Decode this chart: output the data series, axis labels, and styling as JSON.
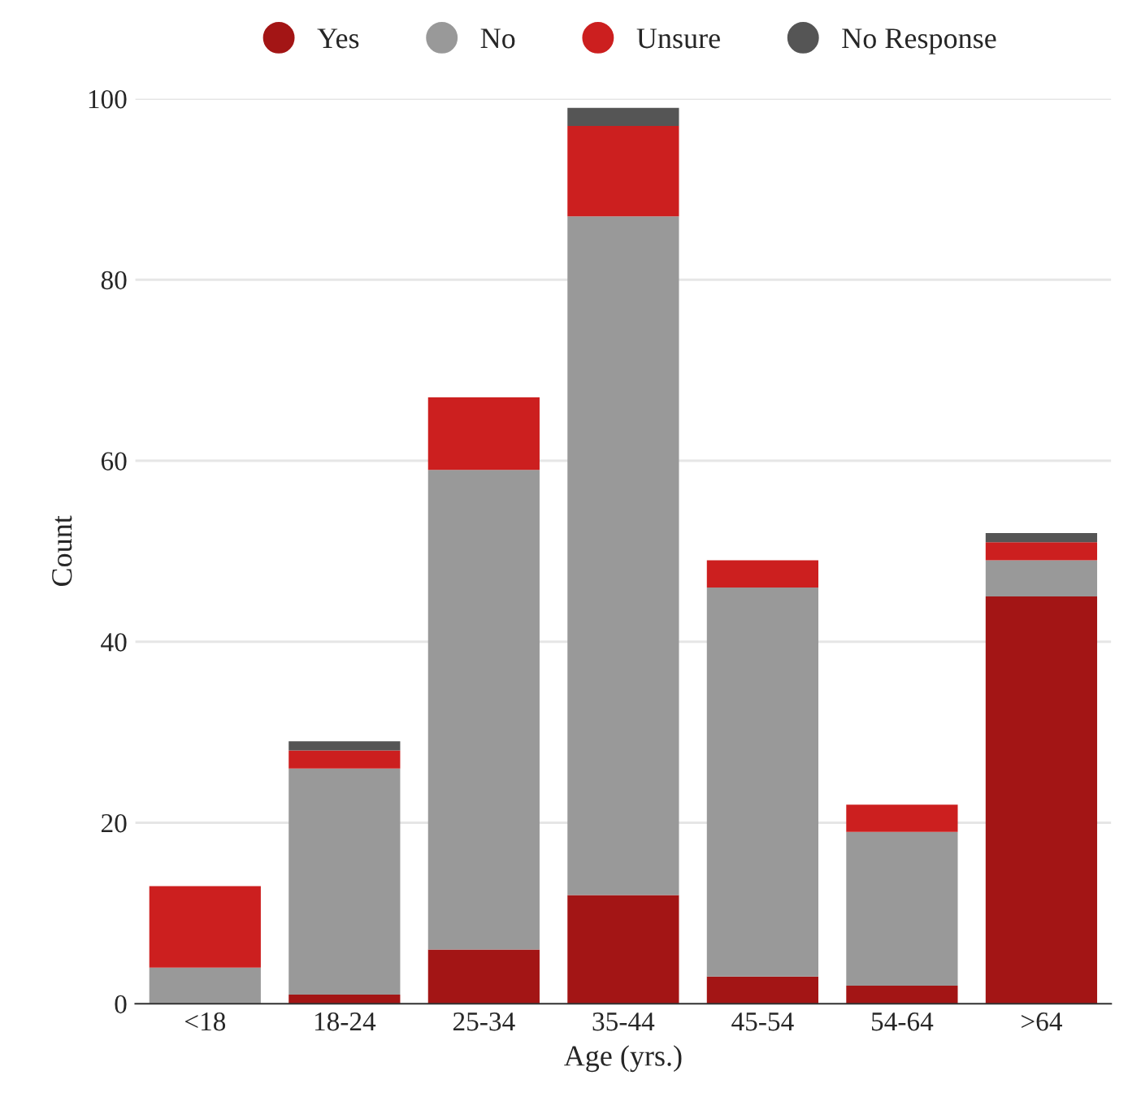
{
  "chart_data": {
    "type": "bar",
    "stacked": true,
    "xlabel": "Age (yrs.)",
    "ylabel": "Count",
    "categories": [
      "<18",
      "18-24",
      "25-34",
      "35-44",
      "45-54",
      "54-64",
      ">64"
    ],
    "series": [
      {
        "name": "Yes",
        "color": "#a31515",
        "values": [
          0,
          1,
          6,
          12,
          3,
          2,
          45
        ]
      },
      {
        "name": "No",
        "color": "#999999",
        "values": [
          4,
          25,
          53,
          75,
          43,
          17,
          4
        ]
      },
      {
        "name": "Unsure",
        "color": "#cc1f1f",
        "values": [
          9,
          2,
          8,
          10,
          3,
          3,
          2
        ]
      },
      {
        "name": "No Response",
        "color": "#555555",
        "values": [
          0,
          1,
          0,
          2,
          0,
          0,
          1
        ]
      }
    ],
    "ylim": [
      0,
      100
    ],
    "yticks": [
      0,
      20,
      40,
      60,
      80,
      100
    ],
    "grid": "y",
    "legend": "top"
  }
}
